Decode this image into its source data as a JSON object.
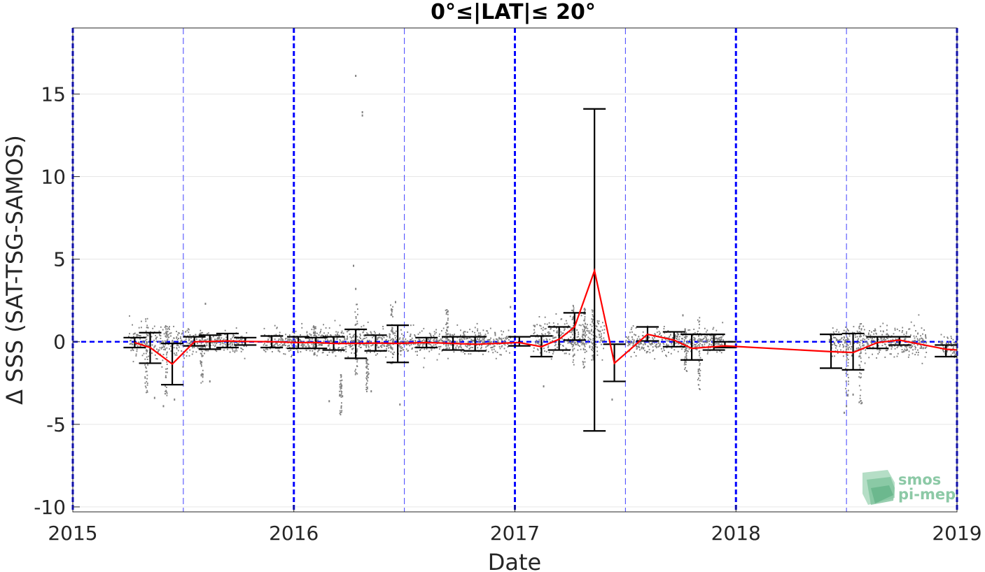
{
  "chart_data": {
    "type": "scatter",
    "title": "0°≤|LAT|≤ 20°",
    "xlabel": "Date",
    "ylabel": "Δ SSS (SAT-TSG-SAMOS)",
    "xlim": [
      2015,
      2019
    ],
    "ylim": [
      -10.3,
      19
    ],
    "x_ticks": [
      2015,
      2016,
      2017,
      2018,
      2019
    ],
    "x_tick_labels": [
      "2015",
      "2016",
      "2017",
      "2018",
      "2019"
    ],
    "y_ticks": [
      -10,
      -5,
      0,
      5,
      10,
      15
    ],
    "y_tick_labels": [
      "-10",
      "-5",
      "0",
      "5",
      "10",
      "15"
    ],
    "grid": true,
    "year_lines": [
      2015,
      2016,
      2017,
      2018,
      2019
    ],
    "halfyear_lines": [
      2015.5,
      2016.5,
      2017.5,
      2018.5
    ],
    "zero_line": 0,
    "colors": {
      "points": "#808080",
      "mean_line": "#ff0000",
      "error_bars": "#000000",
      "reference_lines": "#0000ff",
      "grid": "#e6e6e6"
    },
    "data_segments": [
      {
        "start": 2015.25,
        "end": 2015.52,
        "center": 0.0,
        "spread": 0.55
      },
      {
        "start": 2015.52,
        "end": 2015.78,
        "center": 0.0,
        "spread": 0.3
      },
      {
        "start": 2015.86,
        "end": 2016.48,
        "center": 0.0,
        "spread": 0.4
      },
      {
        "start": 2016.48,
        "end": 2016.98,
        "center": 0.0,
        "spread": 0.35
      },
      {
        "start": 2017.08,
        "end": 2017.4,
        "center": 0.3,
        "spread": 0.5
      },
      {
        "start": 2017.5,
        "end": 2017.94,
        "center": 0.0,
        "spread": 0.35
      },
      {
        "start": 2018.42,
        "end": 2018.86,
        "center": 0.0,
        "spread": 0.45
      },
      {
        "start": 2018.92,
        "end": 2019.0,
        "center": -0.3,
        "spread": 0.3
      }
    ],
    "outliers": [
      {
        "x": 2016.28,
        "y": 16.1
      },
      {
        "x": 2016.31,
        "y": 13.9
      },
      {
        "x": 2016.31,
        "y": 13.7
      },
      {
        "x": 2016.27,
        "y": 4.6
      },
      {
        "x": 2016.28,
        "y": 3.2
      },
      {
        "x": 2016.46,
        "y": 2.4
      },
      {
        "x": 2016.16,
        "y": -3.6
      },
      {
        "x": 2016.22,
        "y": -3.3
      },
      {
        "x": 2016.35,
        "y": -3.0
      },
      {
        "x": 2015.37,
        "y": -3.4
      },
      {
        "x": 2015.41,
        "y": -3.9
      },
      {
        "x": 2015.46,
        "y": -3.5
      },
      {
        "x": 2015.62,
        "y": -2.4
      },
      {
        "x": 2015.6,
        "y": 2.3
      },
      {
        "x": 2016.48,
        "y": -3.8
      },
      {
        "x": 2016.98,
        "y": 2.1
      },
      {
        "x": 2017.13,
        "y": -2.7
      },
      {
        "x": 2017.44,
        "y": -3.5
      },
      {
        "x": 2017.76,
        "y": 1.6
      },
      {
        "x": 2018.5,
        "y": -3.9
      },
      {
        "x": 2018.49,
        "y": -4.3
      },
      {
        "x": 2018.53,
        "y": -3.2
      },
      {
        "x": 2018.57,
        "y": -3.7
      }
    ],
    "spikes": [
      {
        "x": 2015.33,
        "low": -3.2,
        "high": 1.4
      },
      {
        "x": 2015.42,
        "low": -3.3,
        "high": 1.0
      },
      {
        "x": 2015.58,
        "low": -2.6,
        "high": 0.7
      },
      {
        "x": 2016.09,
        "low": -0.8,
        "high": 1.0
      },
      {
        "x": 2016.21,
        "low": -4.5,
        "high": -2.0
      },
      {
        "x": 2016.28,
        "low": -2.0,
        "high": 2.3
      },
      {
        "x": 2016.33,
        "low": -3.1,
        "high": -1.0
      },
      {
        "x": 2016.44,
        "low": -1.5,
        "high": 2.5
      },
      {
        "x": 2016.69,
        "low": -0.5,
        "high": 2.0
      },
      {
        "x": 2017.26,
        "low": -1.5,
        "high": 2.3
      },
      {
        "x": 2017.31,
        "low": -1.6,
        "high": 2.1
      },
      {
        "x": 2017.35,
        "low": -1.2,
        "high": 2.0
      },
      {
        "x": 2017.83,
        "low": -2.9,
        "high": 1.6
      },
      {
        "x": 2017.77,
        "low": -1.8,
        "high": 0.9
      },
      {
        "x": 2018.5,
        "low": -3.7,
        "high": 0.9
      },
      {
        "x": 2018.56,
        "low": -3.9,
        "high": 1.1
      }
    ],
    "error_bars": [
      {
        "x": 2015.28,
        "low": -0.35,
        "high": 0.25
      },
      {
        "x": 2015.35,
        "low": -1.3,
        "high": 0.55
      },
      {
        "x": 2015.45,
        "low": -2.6,
        "high": -0.1
      },
      {
        "x": 2015.55,
        "low": -0.25,
        "high": 0.3
      },
      {
        "x": 2015.62,
        "low": -0.45,
        "high": 0.4
      },
      {
        "x": 2015.7,
        "low": -0.35,
        "high": 0.5
      },
      {
        "x": 2015.78,
        "low": -0.2,
        "high": 0.25
      },
      {
        "x": 2015.9,
        "low": -0.35,
        "high": 0.35
      },
      {
        "x": 2016.02,
        "low": -0.4,
        "high": 0.3
      },
      {
        "x": 2016.1,
        "low": -0.4,
        "high": 0.25
      },
      {
        "x": 2016.18,
        "low": -0.5,
        "high": 0.3
      },
      {
        "x": 2016.28,
        "low": -1.0,
        "high": 0.75
      },
      {
        "x": 2016.37,
        "low": -0.55,
        "high": 0.4
      },
      {
        "x": 2016.47,
        "low": -1.25,
        "high": 1.0
      },
      {
        "x": 2016.6,
        "low": -0.35,
        "high": 0.25
      },
      {
        "x": 2016.72,
        "low": -0.5,
        "high": 0.3
      },
      {
        "x": 2016.82,
        "low": -0.55,
        "high": 0.3
      },
      {
        "x": 2017.02,
        "low": -0.25,
        "high": 0.3
      },
      {
        "x": 2017.12,
        "low": -0.9,
        "high": 0.35
      },
      {
        "x": 2017.2,
        "low": -0.5,
        "high": 0.9
      },
      {
        "x": 2017.27,
        "low": 0.1,
        "high": 1.75
      },
      {
        "x": 2017.36,
        "low": -5.4,
        "high": 14.1
      },
      {
        "x": 2017.45,
        "low": -2.4,
        "high": -0.15
      },
      {
        "x": 2017.6,
        "low": 0.05,
        "high": 0.9
      },
      {
        "x": 2017.72,
        "low": -0.3,
        "high": 0.6
      },
      {
        "x": 2017.8,
        "low": -1.1,
        "high": 0.45
      },
      {
        "x": 2017.9,
        "low": -0.5,
        "high": 0.45
      },
      {
        "x": 2017.95,
        "low": -0.35,
        "high": 0.0
      },
      {
        "x": 2018.43,
        "low": -1.6,
        "high": 0.45
      },
      {
        "x": 2018.53,
        "low": -1.7,
        "high": 0.5
      },
      {
        "x": 2018.64,
        "low": -0.4,
        "high": 0.3
      },
      {
        "x": 2018.74,
        "low": -0.2,
        "high": 0.3
      },
      {
        "x": 2018.95,
        "low": -0.9,
        "high": -0.2
      }
    ],
    "mean_line": {
      "x": [
        2015.28,
        2015.35,
        2015.45,
        2015.55,
        2015.62,
        2015.7,
        2015.78,
        2015.9,
        2016.02,
        2016.1,
        2016.18,
        2016.28,
        2016.37,
        2016.47,
        2016.6,
        2016.72,
        2016.82,
        2017.02,
        2017.12,
        2017.2,
        2017.27,
        2017.36,
        2017.45,
        2017.6,
        2017.72,
        2017.8,
        2017.9,
        2017.95,
        2018.43,
        2018.53,
        2018.64,
        2018.74,
        2018.95,
        2019.0
      ],
      "y": [
        -0.05,
        -0.35,
        -1.35,
        0.0,
        0.02,
        0.05,
        0.02,
        0.0,
        -0.05,
        -0.05,
        -0.1,
        -0.1,
        -0.08,
        -0.1,
        -0.05,
        -0.1,
        -0.15,
        -0.05,
        -0.3,
        0.15,
        0.9,
        4.3,
        -1.3,
        0.45,
        0.1,
        -0.4,
        -0.3,
        -0.25,
        -0.6,
        -0.65,
        -0.05,
        0.1,
        -0.45,
        -0.5
      ]
    }
  },
  "logo": {
    "line1": "smos",
    "line2": "pi-mep"
  }
}
